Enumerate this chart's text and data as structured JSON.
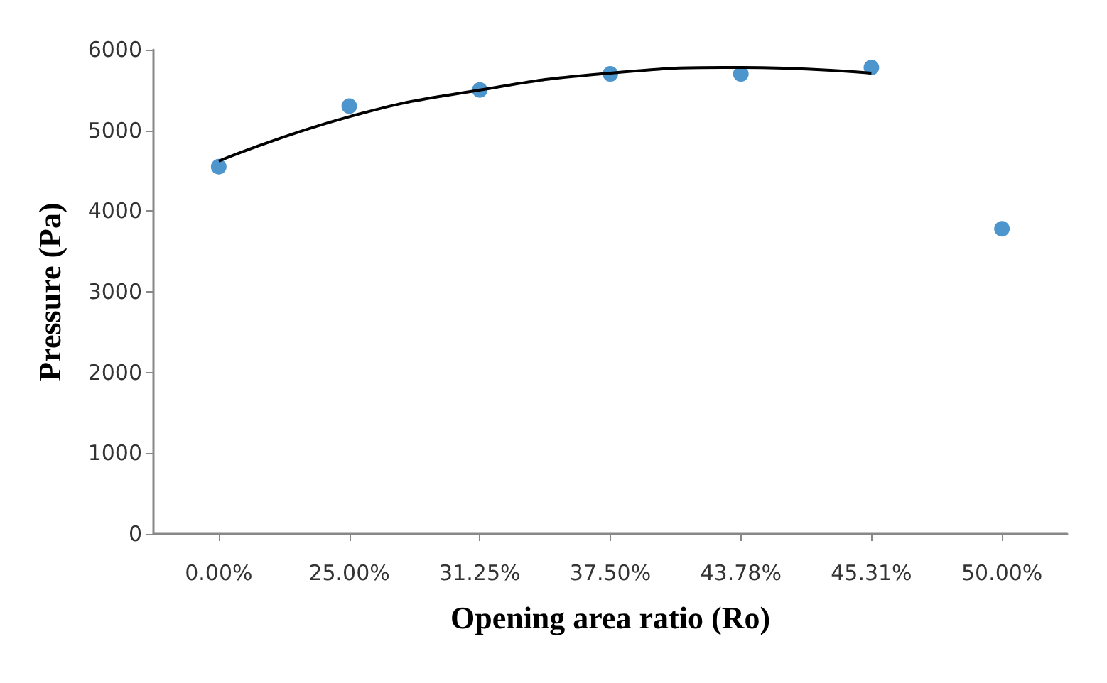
{
  "chart_data": {
    "type": "scatter",
    "xlabel": "Opening area ratio (Ro)",
    "ylabel": "Pressure (Pa)",
    "categories": [
      "0.00%",
      "25.00%",
      "31.25%",
      "37.50%",
      "43.78%",
      "45.31%",
      "50.00%"
    ],
    "ylim": [
      0,
      6000
    ],
    "yticks": [
      0,
      1000,
      2000,
      3000,
      4000,
      5000,
      6000
    ],
    "grid": false,
    "series": [
      {
        "color": "#1f7bc1",
        "marker": "circle",
        "values": [
          4550,
          5300,
          5500,
          5700,
          5700,
          5780,
          3780
        ]
      },
      {
        "type": "line",
        "color": "#000000",
        "marker": "none",
        "line_style": "solid",
        "x": [
          "0.00%",
          "25.00%",
          "31.25%",
          "37.50%",
          "43.78%",
          "45.31%"
        ],
        "values": [
          4620,
          5170,
          5500,
          5710,
          5780,
          5710
        ]
      }
    ]
  }
}
